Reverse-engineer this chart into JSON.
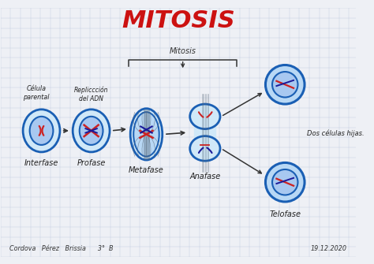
{
  "title": "MITOSIS",
  "title_color": "#cc1111",
  "title_fontsize": 22,
  "bg_color": "#eef0f5",
  "grid_color": "#c0c8dc",
  "cell_blue": "#1a5fb4",
  "cell_fill": "#d0e8f8",
  "cell_fill2": "#b8d8f5",
  "nuc_fill": "#a8c8f0",
  "chr_red": "#cc2222",
  "chr_blue": "#1a1a99",
  "spindle_color": "#556677",
  "arrow_color": "#333333",
  "text_color": "#222222",
  "stage_labels": [
    "Interfase",
    "Profase",
    "Metafase",
    "Anafase"
  ],
  "daughter_label": "Dos células hijas.",
  "telofase_label": "Telofase",
  "mitosis_label": "Mitosis",
  "bottom_left": "Cordova   Pérez   Brissia      3°  B",
  "bottom_right": "19.12.2020",
  "celula_label": "Célula\nparental",
  "replic_label": "Repliccción\ndel ADN"
}
